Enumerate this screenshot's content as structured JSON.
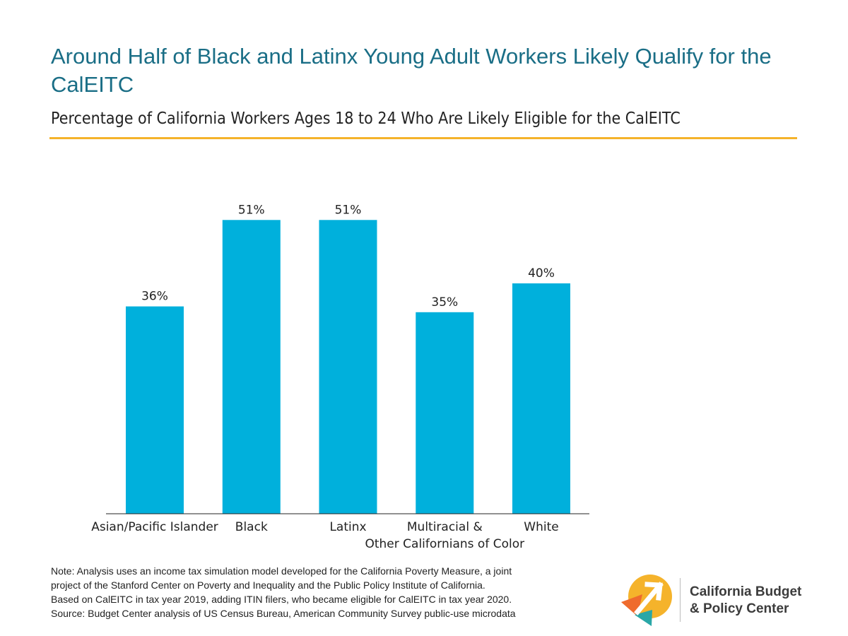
{
  "header": {
    "title": "Around Half of Black and Latinx Young Adult Workers Likely Qualify for the CalEITC",
    "subtitle": "Percentage of California Workers Ages 18 to 24 Who Are Likely Eligible for the CalEITC"
  },
  "chart_data": {
    "type": "bar",
    "categories": [
      [
        "Asian/Pacific Islander"
      ],
      [
        "Black"
      ],
      [
        "Latinx"
      ],
      [
        "Multiracial &",
        "Other Californians of Color"
      ],
      [
        "White"
      ]
    ],
    "values": [
      36,
      51,
      51,
      35,
      40
    ],
    "value_labels": [
      "36%",
      "51%",
      "51%",
      "35%",
      "40%"
    ],
    "ylim": [
      0,
      60
    ],
    "grid": false,
    "bar_color": "#00b0dc"
  },
  "footer": {
    "note_lines": [
      "Note: Analysis uses an income tax simulation model developed for the California Poverty Measure, a joint",
      "project of the Stanford Center on Poverty and Inequality and the Public Policy Institute of California.",
      "Based on CalEITC in tax year 2019, adding ITIN filers, who became eligible for CalEITC in tax year 2020.",
      "Source: Budget Center analysis of US Census Bureau, American Community Survey public-use microdata"
    ]
  },
  "logo": {
    "line1": "California Budget",
    "line2": "& Policy Center",
    "colors": {
      "yellow": "#f5b32b",
      "orange": "#ef6b2d",
      "teal": "#2aa7a7",
      "arrow": "#ffffff"
    }
  }
}
